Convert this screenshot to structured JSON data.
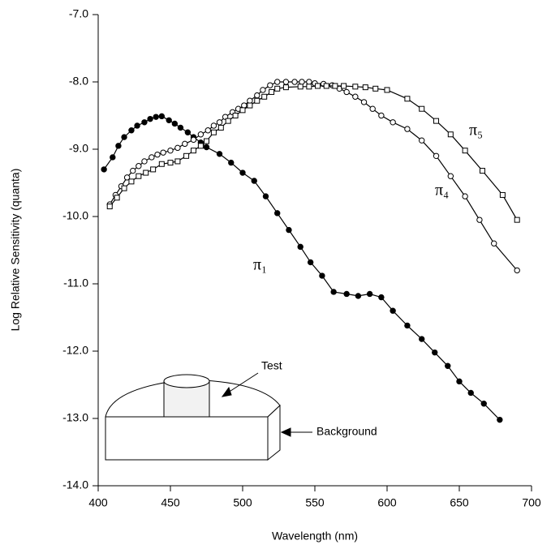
{
  "chart_data": {
    "type": "line",
    "x_label": "Wavelength  (nm)",
    "y_label": "Log Relative Sensitivity  (quanta)",
    "xlim": [
      400,
      700
    ],
    "xticks": [
      400,
      450,
      500,
      550,
      600,
      650,
      700
    ],
    "ylim": [
      -14,
      -7
    ],
    "yticks": [
      {
        "value": -14,
        "label": "-14.0"
      },
      {
        "value": -13,
        "label": "-13.0"
      },
      {
        "value": -12,
        "label": "-12.0"
      },
      {
        "value": -11,
        "label": "-11.0"
      },
      {
        "value": -10,
        "label": "-10.0"
      },
      {
        "value": -9,
        "label": "-9.0"
      },
      {
        "value": -8,
        "label": "-8.0"
      },
      {
        "value": -7,
        "label": "-7.0"
      }
    ],
    "series": [
      {
        "name": "π₁",
        "color": "#000000",
        "marker": "filled-circle",
        "x": [
          404,
          410,
          414,
          418,
          423,
          427,
          432,
          436,
          440,
          444,
          449,
          453,
          457,
          462,
          466,
          471,
          475,
          484,
          492,
          500,
          508,
          516,
          524,
          532,
          540,
          547,
          555,
          563,
          572,
          580,
          588,
          596,
          604,
          614,
          624,
          633,
          642,
          650,
          658,
          667,
          678
        ],
        "values": [
          -9.3,
          -9.12,
          -8.95,
          -8.82,
          -8.72,
          -8.65,
          -8.6,
          -8.55,
          -8.52,
          -8.51,
          -8.57,
          -8.62,
          -8.68,
          -8.75,
          -8.82,
          -8.9,
          -8.97,
          -9.07,
          -9.2,
          -9.35,
          -9.47,
          -9.7,
          -9.95,
          -10.2,
          -10.45,
          -10.68,
          -10.88,
          -11.12,
          -11.15,
          -11.18,
          -11.15,
          -11.2,
          -11.4,
          -11.62,
          -11.82,
          -12.02,
          -12.22,
          -12.45,
          -12.62,
          -12.78,
          -13.02
        ]
      },
      {
        "name": "π₄",
        "color": "#000000",
        "marker": "open-circle",
        "x": [
          408,
          412,
          416,
          420,
          424,
          428,
          432,
          437,
          441,
          445,
          450,
          455,
          460,
          466,
          471,
          476,
          480,
          484,
          488,
          493,
          497,
          501,
          505,
          510,
          514,
          519,
          524,
          530,
          536,
          541,
          546,
          550,
          556,
          562,
          567,
          572,
          578,
          584,
          590,
          596,
          604,
          614,
          624,
          634,
          644,
          654,
          664,
          674,
          690
        ],
        "values": [
          -9.82,
          -9.68,
          -9.55,
          -9.42,
          -9.32,
          -9.25,
          -9.18,
          -9.12,
          -9.08,
          -9.05,
          -9.02,
          -8.98,
          -8.92,
          -8.86,
          -8.78,
          -8.72,
          -8.65,
          -8.6,
          -8.52,
          -8.45,
          -8.4,
          -8.35,
          -8.28,
          -8.2,
          -8.12,
          -8.05,
          -8.0,
          -8.0,
          -8.0,
          -8.0,
          -8.0,
          -8.02,
          -8.03,
          -8.05,
          -8.1,
          -8.15,
          -8.22,
          -8.3,
          -8.4,
          -8.5,
          -8.6,
          -8.7,
          -8.87,
          -9.1,
          -9.4,
          -9.7,
          -10.05,
          -10.4,
          -10.8
        ]
      },
      {
        "name": "π₅",
        "color": "#000000",
        "marker": "open-square",
        "x": [
          408,
          413,
          418,
          423,
          428,
          433,
          438,
          444,
          450,
          455,
          461,
          466,
          471,
          475,
          480,
          485,
          490,
          495,
          500,
          505,
          510,
          515,
          520,
          524,
          530,
          540,
          546,
          552,
          558,
          564,
          570,
          578,
          585,
          592,
          600,
          614,
          624,
          634,
          644,
          654,
          666,
          680,
          690
        ],
        "values": [
          -9.85,
          -9.72,
          -9.58,
          -9.48,
          -9.4,
          -9.35,
          -9.3,
          -9.22,
          -9.2,
          -9.18,
          -9.1,
          -9.02,
          -8.95,
          -8.88,
          -8.75,
          -8.68,
          -8.58,
          -8.5,
          -8.42,
          -8.35,
          -8.28,
          -8.22,
          -8.15,
          -8.1,
          -8.08,
          -8.07,
          -8.07,
          -8.06,
          -8.06,
          -8.06,
          -8.06,
          -8.07,
          -8.08,
          -8.1,
          -8.12,
          -8.25,
          -8.4,
          -8.58,
          -8.78,
          -9.02,
          -9.32,
          -9.68,
          -10.05
        ]
      }
    ],
    "annotations": [
      "Test",
      "Background"
    ]
  }
}
